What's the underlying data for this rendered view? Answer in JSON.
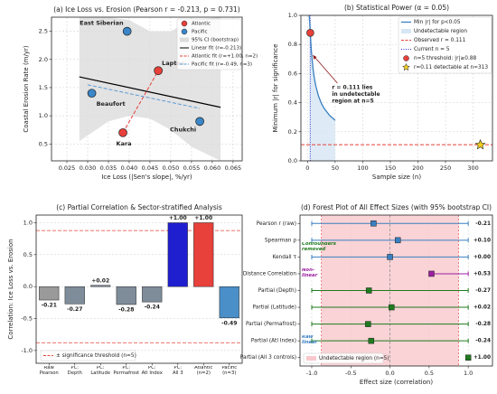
{
  "chart_data": [
    {
      "type": "scatter",
      "title": "(a) Ice Loss vs. Erosion (Pearson r = -0.213, p = 0.731)",
      "x_label": "Ice Loss (|Sen's slope|, %/yr)",
      "y_label": "Coastal Erosion Rate (m/yr)",
      "xlim": [
        0.0213,
        0.0672
      ],
      "xticks": [
        0.025,
        {
          "value": 0.03,
          "label": "0.030"
        },
        0.035,
        {
          "value": 0.04,
          "label": "0.040"
        },
        0.045,
        {
          "value": 0.05,
          "label": "0.050"
        },
        0.055,
        {
          "value": 0.06,
          "label": "0.060"
        },
        0.065
      ],
      "ylim": [
        0.2,
        2.75
      ],
      "yticks": [
        0.5,
        {
          "value": 1.0,
          "label": "1.0"
        },
        1.5,
        {
          "value": 2.0,
          "label": "2.0"
        },
        2.5
      ],
      "grid": true,
      "legend": "upper right",
      "series": [
        {
          "name": "Atlantic",
          "color": "#e8403a",
          "x": [
            0.047,
            0.0385
          ],
          "values": [
            1.8,
            0.7
          ],
          "labels": [
            "Laptev",
            "Kara"
          ]
        },
        {
          "name": "Pacific",
          "color": "#3a86c8",
          "x": [
            0.0395,
            0.031,
            0.057
          ],
          "values": [
            2.5,
            1.4,
            0.9
          ],
          "labels": [
            "East Siberian",
            "Beaufort",
            "Chukchi"
          ]
        }
      ],
      "ci_band": {
        "name": "95% CI (bootstrap)",
        "color": "#dcdcdc",
        "x": [
          0.028,
          0.035,
          0.04,
          0.045,
          0.05,
          0.055,
          0.062
        ],
        "lower": [
          0.55,
          0.9,
          1.0,
          0.95,
          0.75,
          0.45,
          0.2
        ],
        "upper": [
          2.75,
          2.75,
          2.7,
          2.5,
          2.5,
          2.7,
          2.75
        ]
      },
      "fits": [
        {
          "name": "Linear fit (r=-0.213)",
          "color": "#000000",
          "dash": false,
          "x": [
            0.028,
            0.062
          ],
          "values": [
            1.69,
            1.15
          ]
        },
        {
          "name": "Atlantic fit (r=+1.00, n=2)",
          "color": "#e8403a",
          "dash": true,
          "x": [
            0.0385,
            0.047
          ],
          "values": [
            0.7,
            1.8
          ]
        },
        {
          "name": "Pacific fit (r=-0.49, n=3)",
          "color": "#5b9bd5",
          "dash": true,
          "x": [
            0.03,
            0.057
          ],
          "values": [
            1.55,
            1.13
          ]
        }
      ]
    },
    {
      "type": "line",
      "title": "(b) Statistical Power (α = 0.05)",
      "x_label": "Sample size (n)",
      "y_label": "Minimum |r| for significance",
      "xlim": [
        -12,
        335
      ],
      "xticks": [
        0,
        50,
        100,
        150,
        200,
        250,
        300
      ],
      "ylim": [
        0,
        1.0
      ],
      "yticks": [
        {
          "value": 0,
          "label": "0.0"
        },
        0.2,
        0.4,
        0.6,
        0.8,
        {
          "value": 1.0,
          "label": "1.0"
        }
      ],
      "grid": true,
      "legend": "upper right",
      "series": [
        {
          "name": "Min |r| for p<0.05",
          "color": "#3a7fc0",
          "x": [
            3,
            4,
            5,
            6,
            7,
            8,
            10,
            12,
            15,
            20,
            25,
            30,
            40,
            50
          ],
          "values": [
            0.997,
            0.95,
            0.878,
            0.811,
            0.754,
            0.707,
            0.632,
            0.576,
            0.514,
            0.444,
            0.396,
            0.361,
            0.312,
            0.279
          ]
        }
      ],
      "region": {
        "name": "Undetectable region",
        "color": "#d6e6f4"
      },
      "hline": {
        "name": "Observed r = 0.111",
        "color": "#e8403a",
        "value": 0.111
      },
      "vline": {
        "name": "Current n = 5",
        "color": "#2a2ad0",
        "value": 5
      },
      "points": [
        {
          "name": "n=5 threshold: |r|≥0.88",
          "color": "#e8403a",
          "marker": "circle",
          "x": 5,
          "value": 0.88
        },
        {
          "name": "r=0.11 detectable at n≈313",
          "color": "#f5d020",
          "marker": "star",
          "x": 313,
          "value": 0.11
        }
      ],
      "annotation": [
        "r = 0.111 lies",
        "in undetectable",
        "region at n=5"
      ],
      "annotation_color": "#8b1a1a"
    },
    {
      "type": "bar",
      "title": "(c) Partial Correlation & Sector-stratified Analysis",
      "y_label": "Correlation: Ice Loss vs. Erosion",
      "categories": [
        "Raw\nPearson",
        "PC:\nDepth",
        "PC:\nLatitude",
        "PC:\nPermafrost",
        "PC:\nAtl Index",
        "PC:\nAll 3",
        "Atlantic\n(n=2)",
        "Pacific\n(n=3)"
      ],
      "values": [
        -0.21,
        -0.27,
        0.02,
        -0.28,
        -0.24,
        1.0,
        1.0,
        -0.49
      ],
      "value_labels": [
        "-0.21",
        "-0.27",
        "+0.02",
        "-0.28",
        "-0.24",
        "+1.00",
        "+1.00",
        "-0.49"
      ],
      "colors": [
        "#9a9a9a",
        "#7f8c9a",
        "#7f8c9a",
        "#7f8c9a",
        "#7f8c9a",
        "#1f1fd0",
        "#e8403a",
        "#4a8fc8"
      ],
      "ylim": [
        -1.2,
        1.12
      ],
      "yticks": [
        {
          "value": -1.0,
          "label": "-1.0"
        },
        -0.5,
        {
          "value": 0,
          "label": "0.0"
        },
        0.5,
        {
          "value": 1.0,
          "label": "1.0"
        }
      ],
      "grid": true,
      "legend": "lower left",
      "threshold": {
        "name": "± significance threshold (n=5)",
        "color": "#e8403a",
        "values": [
          0.878,
          -0.878
        ]
      }
    },
    {
      "type": "forest",
      "title": "(d) Forest Plot of All Effect Sizes (with 95% bootstrap CI)",
      "x_label": "Effect size (correlation)",
      "categories": [
        "Pearson r (raw)",
        "Spearman ρ",
        "Kendall τ",
        "Distance Correlation",
        "Partial (Depth)",
        "Partial (Latitude)",
        "Partial (Permafrost)",
        "Partial (Atl Index)",
        "Partial (All 3 controls)"
      ],
      "values": [
        -0.21,
        0.1,
        0.0,
        0.53,
        -0.27,
        0.02,
        -0.28,
        -0.24,
        1.0
      ],
      "ci_low": [
        -1,
        -1,
        -1,
        0.53,
        -1,
        -1,
        -1,
        -1,
        1.0
      ],
      "ci_high": [
        1,
        1,
        1,
        1,
        1,
        1,
        1,
        1,
        1.0
      ],
      "value_labels": [
        "-0.21",
        "+0.10",
        "+0.00",
        "+0.53",
        "-0.27",
        "+0.02",
        "-0.28",
        "-0.24",
        "+1.00"
      ],
      "colors": [
        "#3a7fc0",
        "#3a7fc0",
        "#3a7fc0",
        "#9b1fa0",
        "#1e7a1e",
        "#1e7a1e",
        "#1e7a1e",
        "#1e7a1e",
        "#1e7a1e"
      ],
      "xlim": [
        -1.15,
        1.31
      ],
      "xticks": [
        {
          "value": -1.0,
          "label": "-1.0"
        },
        -0.5,
        {
          "value": 0,
          "label": "0.0"
        },
        0.5,
        {
          "value": 1.0,
          "label": "1.0"
        }
      ],
      "grid": true,
      "legend": "lower left",
      "region": {
        "name": "Undetectable region (n=5)",
        "color": "#f8c8cc",
        "lim": [
          -0.878,
          0.878
        ]
      },
      "notes": [
        {
          "text": "Confounders\nremoved",
          "color": "#1e7a1e"
        },
        {
          "text": "Non-\nlinear",
          "color": "#9b1fa0"
        },
        {
          "text": "Raw\nlinear",
          "color": "#3a7fc0"
        }
      ]
    }
  ]
}
